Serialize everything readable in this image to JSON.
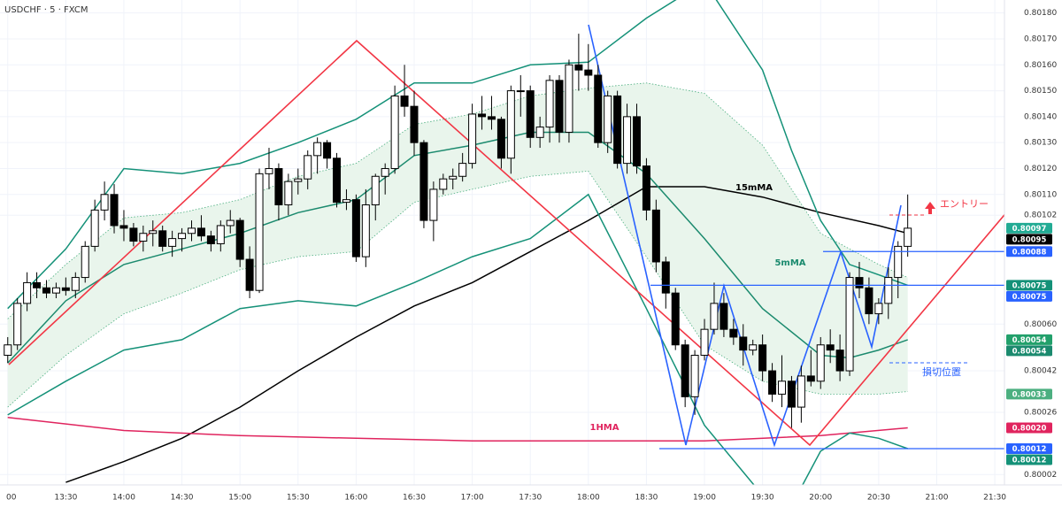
{
  "chart_data": {
    "type": "candlestick",
    "title": "USDCHF · 5 · FXCM",
    "x": [
      "13:00",
      "13:05",
      "13:10",
      "13:15",
      "13:20",
      "13:25",
      "13:30",
      "13:35",
      "13:40",
      "13:45",
      "13:50",
      "13:55",
      "14:00",
      "14:05",
      "14:10",
      "14:15",
      "14:20",
      "14:25",
      "14:30",
      "14:35",
      "14:40",
      "14:45",
      "14:50",
      "14:55",
      "15:00",
      "15:05",
      "15:10",
      "15:15",
      "15:20",
      "15:25",
      "15:30",
      "15:35",
      "15:40",
      "15:45",
      "15:50",
      "15:55",
      "16:00",
      "16:05",
      "16:10",
      "16:15",
      "16:20",
      "16:25",
      "16:30",
      "16:35",
      "16:40",
      "16:45",
      "16:50",
      "16:55",
      "17:00",
      "17:05",
      "17:10",
      "17:15",
      "17:20",
      "17:25",
      "17:30",
      "17:35",
      "17:40",
      "17:45",
      "17:50",
      "17:55",
      "18:00",
      "18:05",
      "18:10",
      "18:15",
      "18:20",
      "18:25",
      "18:30",
      "18:35",
      "18:40",
      "18:45",
      "18:50",
      "18:55",
      "19:00",
      "19:05",
      "19:10",
      "19:15",
      "19:20",
      "19:25",
      "19:30",
      "19:35",
      "19:40",
      "19:45",
      "19:50",
      "19:55",
      "20:00",
      "20:05",
      "20:10",
      "20:15",
      "20:20",
      "20:25",
      "20:30",
      "20:35",
      "20:40",
      "20:45"
    ],
    "open": [
      0.80048,
      0.80052,
      0.80068,
      0.80076,
      0.80074,
      0.80072,
      0.80074,
      0.80073,
      0.80078,
      0.8009,
      0.80104,
      0.8011,
      0.80098,
      0.80097,
      0.80092,
      0.80095,
      0.80096,
      0.8009,
      0.80093,
      0.80095,
      0.80097,
      0.80094,
      0.80091,
      0.80098,
      0.801,
      0.80085,
      0.80073,
      0.80118,
      0.8012,
      0.80106,
      0.80115,
      0.80116,
      0.80125,
      0.8013,
      0.80124,
      0.80107,
      0.80108,
      0.80086,
      0.80106,
      0.80117,
      0.8012,
      0.80148,
      0.80144,
      0.8013,
      0.801,
      0.80112,
      0.80116,
      0.80117,
      0.80122,
      0.80141,
      0.8014,
      0.80139,
      0.80124,
      0.8015,
      0.8015,
      0.80132,
      0.80136,
      0.80154,
      0.80134,
      0.8016,
      0.80158,
      0.80156,
      0.8013,
      0.80148,
      0.80122,
      0.8014,
      0.80121,
      0.80104,
      0.80084,
      0.80072,
      0.80052,
      0.80032,
      0.80048,
      0.80058,
      0.80068,
      0.80058,
      0.80055,
      0.8005,
      0.80052,
      0.80042,
      0.80033,
      0.80038,
      0.80028,
      0.8004,
      0.80038,
      0.80052,
      0.8005,
      0.80042,
      0.80078,
      0.80074,
      0.80064,
      0.80068,
      0.80078,
      0.8009
    ],
    "high": [
      0.80055,
      0.8007,
      0.8008,
      0.8008,
      0.80077,
      0.80076,
      0.80078,
      0.8008,
      0.80092,
      0.80108,
      0.80115,
      0.80114,
      0.80104,
      0.80099,
      0.80098,
      0.801,
      0.80098,
      0.80096,
      0.80097,
      0.801,
      0.80102,
      0.80096,
      0.801,
      0.80104,
      0.80101,
      0.8009,
      0.8012,
      0.80128,
      0.80122,
      0.80118,
      0.8012,
      0.80127,
      0.80132,
      0.80131,
      0.80126,
      0.80112,
      0.8011,
      0.80112,
      0.80118,
      0.80122,
      0.80152,
      0.8016,
      0.8015,
      0.80131,
      0.80115,
      0.80118,
      0.8012,
      0.80126,
      0.80145,
      0.80148,
      0.80148,
      0.8014,
      0.80152,
      0.80156,
      0.80152,
      0.8014,
      0.80156,
      0.80156,
      0.80162,
      0.80172,
      0.80168,
      0.8016,
      0.8015,
      0.8015,
      0.80145,
      0.80145,
      0.80124,
      0.80108,
      0.80086,
      0.80074,
      0.80054,
      0.8005,
      0.80062,
      0.80076,
      0.80072,
      0.80062,
      0.8006,
      0.80054,
      0.80056,
      0.80045,
      0.80048,
      0.8004,
      0.80044,
      0.8005,
      0.80055,
      0.80058,
      0.80056,
      0.8008,
      0.80084,
      0.80078,
      0.8007,
      0.80082,
      0.80092,
      0.8011
    ],
    "low": [
      0.80045,
      0.8005,
      0.80065,
      0.8007,
      0.8007,
      0.8007,
      0.80071,
      0.8007,
      0.80076,
      0.80088,
      0.801,
      0.80095,
      0.80092,
      0.8009,
      0.80088,
      0.8009,
      0.80088,
      0.80086,
      0.80088,
      0.80092,
      0.80092,
      0.80088,
      0.80088,
      0.80095,
      0.80082,
      0.8007,
      0.80072,
      0.80112,
      0.801,
      0.80102,
      0.8011,
      0.80112,
      0.80118,
      0.8012,
      0.80105,
      0.80104,
      0.80084,
      0.80082,
      0.801,
      0.8011,
      0.80118,
      0.8014,
      0.80125,
      0.80097,
      0.80092,
      0.8011,
      0.80112,
      0.80115,
      0.8012,
      0.80135,
      0.80135,
      0.8012,
      0.80118,
      0.8014,
      0.80128,
      0.80128,
      0.8013,
      0.8013,
      0.8013,
      0.8015,
      0.8015,
      0.80128,
      0.80126,
      0.8012,
      0.80118,
      0.80118,
      0.801,
      0.8008,
      0.80066,
      0.8005,
      0.80028,
      0.80025,
      0.80046,
      0.80056,
      0.80055,
      0.80052,
      0.80044,
      0.80048,
      0.80038,
      0.8003,
      0.80028,
      0.8002,
      0.80022,
      0.80036,
      0.80035,
      0.80045,
      0.80038,
      0.8004,
      0.8007,
      0.8006,
      0.8006,
      0.80062,
      0.8007,
      0.80086
    ],
    "close": [
      0.80052,
      0.80068,
      0.80076,
      0.80074,
      0.80072,
      0.80074,
      0.80073,
      0.80078,
      0.8009,
      0.80104,
      0.8011,
      0.80098,
      0.80097,
      0.80092,
      0.80095,
      0.80096,
      0.8009,
      0.80093,
      0.80095,
      0.80097,
      0.80094,
      0.80091,
      0.80098,
      0.801,
      0.80085,
      0.80073,
      0.80118,
      0.8012,
      0.80106,
      0.80115,
      0.80116,
      0.80125,
      0.8013,
      0.80124,
      0.80107,
      0.80108,
      0.80086,
      0.80106,
      0.80117,
      0.8012,
      0.80148,
      0.80144,
      0.8013,
      0.801,
      0.80112,
      0.80116,
      0.80117,
      0.80122,
      0.80141,
      0.8014,
      0.80139,
      0.80124,
      0.8015,
      0.8015,
      0.80132,
      0.80136,
      0.80154,
      0.80134,
      0.8016,
      0.80158,
      0.80156,
      0.8013,
      0.80148,
      0.80122,
      0.8014,
      0.80121,
      0.80104,
      0.80084,
      0.80072,
      0.80052,
      0.80032,
      0.80048,
      0.80058,
      0.80068,
      0.80058,
      0.80055,
      0.8005,
      0.80052,
      0.80042,
      0.80033,
      0.80038,
      0.80028,
      0.8004,
      0.80038,
      0.80052,
      0.8005,
      0.80042,
      0.80078,
      0.80074,
      0.80064,
      0.80068,
      0.80078,
      0.8009,
      0.80097
    ],
    "up_color": "#ffffff",
    "down_color": "#000000",
    "xlim": [
      "12:56",
      "21:35"
    ],
    "xticks": [
      {
        "value": "13:00",
        "label": "00"
      },
      "13:30",
      "14:00",
      "14:30",
      "15:00",
      "15:30",
      "16:00",
      "16:30",
      "17:00",
      "17:30",
      "18:00",
      "18:30",
      "19:00",
      "19:30",
      "20:00",
      "20:30",
      "21:00",
      "21:30"
    ],
    "ylim": [
      0.79998,
      0.80185
    ],
    "yticks": [
      {
        "value": 0.8018,
        "label": "0.80180"
      },
      {
        "value": 0.8017,
        "label": "0.80170"
      },
      {
        "value": 0.8016,
        "label": "0.80160"
      },
      {
        "value": 0.8015,
        "label": "0.80150"
      },
      {
        "value": 0.8014,
        "label": "0.80140"
      },
      {
        "value": 0.8013,
        "label": "0.80130"
      },
      {
        "value": 0.8012,
        "label": "0.80120"
      },
      {
        "value": 0.8011,
        "label": "0.80110"
      },
      {
        "value": 0.80102,
        "label": "0.80102"
      },
      {
        "value": 0.8006,
        "label": "0.80060"
      },
      {
        "value": 0.80042,
        "label": "0.80042"
      },
      {
        "value": 0.80026,
        "label": "0.80026"
      },
      {
        "value": 0.80002,
        "label": "0.80002"
      }
    ],
    "grid": true,
    "lines": [
      {
        "name": "15mMA",
        "color": "#000000",
        "x": [
          "13:30",
          "14:00",
          "14:30",
          "15:00",
          "15:30",
          "16:00",
          "16:30",
          "17:00",
          "17:30",
          "18:00",
          "18:30",
          "19:00",
          "19:30",
          "20:00",
          "20:30",
          "20:45"
        ],
        "values": [
          0.79999,
          0.80007,
          0.80016,
          0.80028,
          0.80042,
          0.80055,
          0.80067,
          0.80076,
          0.80088,
          0.801,
          0.80113,
          0.80113,
          0.80109,
          0.80103,
          0.80098,
          0.80095
        ]
      },
      {
        "name": "5mMA",
        "color": "#1b8a6e",
        "x": [
          "13:00",
          "13:30",
          "14:00",
          "14:30",
          "15:00",
          "15:30",
          "16:00",
          "16:30",
          "17:00",
          "17:30",
          "18:00",
          "18:30",
          "19:00",
          "19:30",
          "20:00",
          "20:15",
          "20:30",
          "20:45"
        ],
        "values": [
          0.80045,
          0.80069,
          0.80083,
          0.80089,
          0.80095,
          0.80103,
          0.80108,
          0.80125,
          0.80129,
          0.80134,
          0.80134,
          0.80118,
          0.80093,
          0.80066,
          0.80048,
          0.80047,
          0.8005,
          0.80054
        ]
      },
      {
        "name": "1HMA",
        "color": "#e0245e",
        "x": [
          "13:00",
          "14:00",
          "15:00",
          "16:00",
          "17:00",
          "18:00",
          "19:00",
          "20:00",
          "20:45"
        ],
        "values": [
          0.80024,
          0.80019,
          0.80017,
          0.80016,
          0.80015,
          0.80015,
          0.80015,
          0.80017,
          0.8002
        ]
      },
      {
        "color": "#149178",
        "x": [
          "13:00",
          "13:30",
          "14:00",
          "14:30",
          "15:00",
          "15:30",
          "16:00",
          "16:30",
          "17:00",
          "17:30",
          "18:00",
          "18:30",
          "19:00",
          "19:30",
          "19:45",
          "20:00",
          "20:15",
          "20:30",
          "20:45"
        ],
        "values": [
          0.80066,
          0.80089,
          0.8012,
          0.80118,
          0.80122,
          0.8013,
          0.80139,
          0.80153,
          0.80153,
          0.8016,
          0.80161,
          0.80178,
          0.80192,
          0.80158,
          0.80127,
          0.801,
          0.80083,
          0.80079,
          0.80075
        ]
      },
      {
        "color": "#149178",
        "x": [
          "13:00",
          "13:30",
          "14:00",
          "14:30",
          "15:00",
          "15:30",
          "16:00",
          "16:30",
          "17:00",
          "17:30",
          "18:00",
          "18:30",
          "19:00",
          "19:30",
          "19:45",
          "20:00",
          "20:15",
          "20:30",
          "20:45"
        ],
        "values": [
          0.80025,
          0.80038,
          0.8005,
          0.80054,
          0.80066,
          0.80069,
          0.80067,
          0.80076,
          0.80086,
          0.80093,
          0.8011,
          0.80066,
          0.80021,
          0.79994,
          0.7999,
          0.80011,
          0.80018,
          0.80016,
          0.80012
        ]
      }
    ],
    "band": {
      "color": "#4caf80",
      "fill": "#e9f5ec",
      "x": [
        "13:00",
        "13:30",
        "14:00",
        "14:30",
        "15:00",
        "15:30",
        "16:00",
        "16:30",
        "17:00",
        "17:30",
        "18:00",
        "18:30",
        "19:00",
        "19:30",
        "20:00",
        "20:30",
        "20:45"
      ],
      "upper": [
        0.80062,
        0.80083,
        0.80101,
        0.80103,
        0.80108,
        0.80117,
        0.80122,
        0.80137,
        0.80141,
        0.80148,
        0.80151,
        0.80153,
        0.80149,
        0.80129,
        0.80095,
        0.80083,
        0.80078
      ],
      "lower": [
        0.80028,
        0.80048,
        0.80064,
        0.80072,
        0.80081,
        0.80086,
        0.80088,
        0.80107,
        0.80112,
        0.80117,
        0.80119,
        0.80086,
        0.80052,
        0.80038,
        0.80033,
        0.80033,
        0.80034
      ]
    },
    "price_tags": [
      {
        "value": 0.80097,
        "label": "0.80097",
        "color": "#22ab94"
      },
      {
        "value": 0.80095,
        "label": "0.80095",
        "color": "#000000"
      },
      {
        "value": 0.80088,
        "label": "0.80088",
        "color": "#2962ff"
      },
      {
        "value": 0.80075,
        "label": "0.80075",
        "color": "#149178"
      },
      {
        "value": 0.80075,
        "label": "0.80075",
        "color": "#2962ff"
      },
      {
        "value": 0.80054,
        "label": "0.80054",
        "color": "#22a06b"
      },
      {
        "value": 0.80054,
        "label": "0.80054",
        "color": "#1b8a6e"
      },
      {
        "value": 0.80033,
        "label": "0.80033",
        "color": "#4caf80"
      },
      {
        "value": 0.8002,
        "label": "0.80020",
        "color": "#e0245e"
      },
      {
        "value": 0.80012,
        "label": "0.80012",
        "color": "#2962ff"
      },
      {
        "value": 0.80012,
        "label": "0.80012",
        "color": "#149178"
      }
    ],
    "annotations": [
      "エントリー",
      "損切位置"
    ]
  }
}
